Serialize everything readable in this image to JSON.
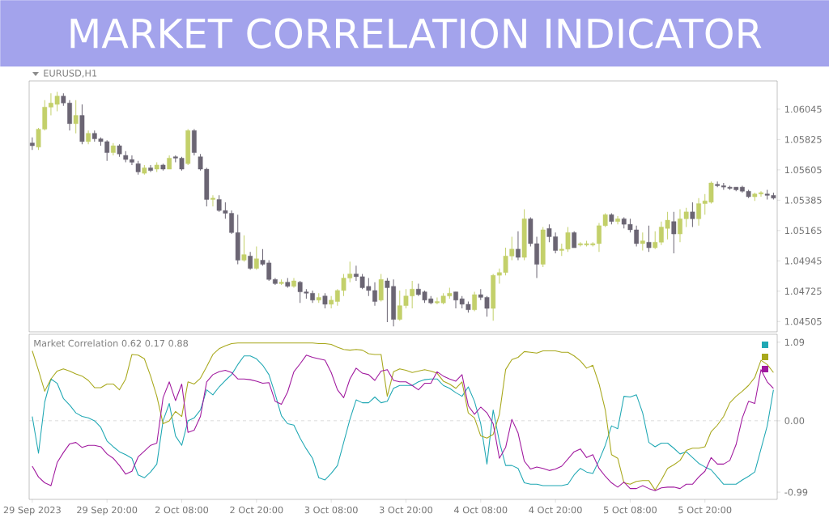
{
  "chart_data": [
    {
      "type": "candlestick",
      "title": "MARKET CORRELATION INDICATOR",
      "subtitle": "EURUSD,H1",
      "categories": [
        null,
        null,
        null,
        null,
        null,
        null,
        null,
        null,
        null,
        null,
        null,
        null,
        null,
        null,
        null,
        null,
        null,
        null,
        null,
        null,
        null,
        null,
        null,
        null,
        null,
        null,
        null,
        null,
        null,
        null,
        null,
        null,
        null,
        null,
        null,
        null,
        null,
        null,
        null,
        null,
        null,
        null,
        null,
        null,
        null,
        null,
        null,
        null,
        null,
        null,
        null,
        null,
        null,
        null,
        null,
        null,
        null,
        null,
        null,
        null,
        null,
        null,
        null,
        null,
        null,
        null,
        null,
        null,
        null,
        null,
        null,
        null,
        null,
        null,
        null,
        null,
        null,
        null,
        null,
        null,
        null,
        null,
        null,
        null,
        null,
        null,
        null,
        null,
        null,
        null,
        null,
        null,
        null,
        null,
        null,
        null,
        null,
        null,
        null,
        null,
        null,
        null,
        null,
        null,
        null,
        null,
        null,
        null,
        null,
        null,
        null,
        null,
        null,
        null,
        null,
        null,
        null,
        null,
        null,
        null
      ],
      "ohlc": [
        [
          1.058,
          1.0584,
          1.0575,
          1.0578
        ],
        [
          1.0577,
          1.0591,
          1.0575,
          1.059
        ],
        [
          1.059,
          1.0611,
          1.0589,
          1.0606
        ],
        [
          1.0606,
          1.0616,
          1.06,
          1.0609
        ],
        [
          1.0608,
          1.0617,
          1.0603,
          1.0614
        ],
        [
          1.0614,
          1.0616,
          1.0607,
          1.0609
        ],
        [
          1.0609,
          1.0611,
          1.0589,
          1.0594
        ],
        [
          1.0594,
          1.0611,
          1.0587,
          1.06
        ],
        [
          1.06,
          1.0608,
          1.0579,
          1.0581
        ],
        [
          1.0581,
          1.0589,
          1.0579,
          1.0587
        ],
        [
          1.0587,
          1.0589,
          1.0581,
          1.0583
        ],
        [
          1.0583,
          1.0584,
          1.0578,
          1.0581
        ],
        [
          1.0581,
          1.0582,
          1.0567,
          1.0573
        ],
        [
          1.0573,
          1.058,
          1.0571,
          1.0578
        ],
        [
          1.0578,
          1.0579,
          1.057,
          1.0572
        ],
        [
          1.0571,
          1.0574,
          1.0566,
          1.0568
        ],
        [
          1.0568,
          1.0571,
          1.0564,
          1.0566
        ],
        [
          1.0565,
          1.0567,
          1.0557,
          1.0559
        ],
        [
          1.0558,
          1.0564,
          1.0557,
          1.0562
        ],
        [
          1.0562,
          1.0564,
          1.0559,
          1.056
        ],
        [
          1.0561,
          1.0566,
          1.0559,
          1.0564
        ],
        [
          1.0564,
          1.0565,
          1.056,
          1.0561
        ],
        [
          1.0561,
          1.0571,
          1.0561,
          1.0569
        ],
        [
          1.057,
          1.0571,
          1.0566,
          1.0569
        ],
        [
          1.0569,
          1.057,
          1.056,
          1.0561
        ],
        [
          1.0565,
          1.059,
          1.0564,
          1.0589
        ],
        [
          1.0589,
          1.059,
          1.0571,
          1.0573
        ],
        [
          1.057,
          1.0572,
          1.056,
          1.0561
        ],
        [
          1.0561,
          1.0562,
          1.0534,
          1.0539
        ],
        [
          1.0539,
          1.0542,
          1.0534,
          1.054
        ],
        [
          1.0539,
          1.0542,
          1.053,
          1.0531
        ],
        [
          1.0531,
          1.0537,
          1.0525,
          1.0529
        ],
        [
          1.0529,
          1.0531,
          1.0514,
          1.0515
        ],
        [
          1.0515,
          1.0528,
          1.0492,
          1.0495
        ],
        [
          1.0495,
          1.0513,
          1.0494,
          1.0499
        ],
        [
          1.0498,
          1.0501,
          1.0488,
          1.0489
        ],
        [
          1.0489,
          1.0505,
          1.0488,
          1.0496
        ],
        [
          1.0495,
          1.0503,
          1.0491,
          1.0492
        ],
        [
          1.0493,
          1.0495,
          1.048,
          1.0481
        ],
        [
          1.0481,
          1.0482,
          1.0477,
          1.0478
        ],
        [
          1.0478,
          1.0481,
          1.0477,
          1.0479
        ],
        [
          1.0479,
          1.0482,
          1.0475,
          1.0476
        ],
        [
          1.0476,
          1.0482,
          1.0475,
          1.048
        ],
        [
          1.0479,
          1.048,
          1.0464,
          1.0472
        ],
        [
          1.0472,
          1.0474,
          1.0467,
          1.0471
        ],
        [
          1.0471,
          1.0473,
          1.0464,
          1.0466
        ],
        [
          1.0466,
          1.0471,
          1.0464,
          1.0468
        ],
        [
          1.0469,
          1.0471,
          1.046,
          1.0463
        ],
        [
          1.0463,
          1.0469,
          1.046,
          1.0466
        ],
        [
          1.0465,
          1.0474,
          1.0462,
          1.0473
        ],
        [
          1.0473,
          1.0485,
          1.0469,
          1.0482
        ],
        [
          1.0482,
          1.0494,
          1.0479,
          1.0485
        ],
        [
          1.0485,
          1.0491,
          1.048,
          1.0483
        ],
        [
          1.0483,
          1.0485,
          1.0474,
          1.0475
        ],
        [
          1.0476,
          1.0482,
          1.0469,
          1.0473
        ],
        [
          1.0473,
          1.0479,
          1.0462,
          1.0465
        ],
        [
          1.0466,
          1.0485,
          1.0465,
          1.0481
        ],
        [
          1.048,
          1.0482,
          1.045,
          1.0475
        ],
        [
          1.0476,
          1.0481,
          1.0447,
          1.0452
        ],
        [
          1.0452,
          1.0473,
          1.0451,
          1.0462
        ],
        [
          1.0462,
          1.0474,
          1.046,
          1.0469
        ],
        [
          1.0469,
          1.048,
          1.046,
          1.0474
        ],
        [
          1.0474,
          1.0478,
          1.0469,
          1.047
        ],
        [
          1.0472,
          1.0473,
          1.0464,
          1.0466
        ],
        [
          1.0467,
          1.0469,
          1.0463,
          1.0464
        ],
        [
          1.0464,
          1.0468,
          1.0463,
          1.0465
        ],
        [
          1.0464,
          1.0471,
          1.0463,
          1.0469
        ],
        [
          1.0469,
          1.0475,
          1.0467,
          1.0471
        ],
        [
          1.0472,
          1.0472,
          1.046,
          1.0466
        ],
        [
          1.0467,
          1.0469,
          1.046,
          1.0463
        ],
        [
          1.0463,
          1.0465,
          1.0457,
          1.0459
        ],
        [
          1.0459,
          1.0472,
          1.0458,
          1.047
        ],
        [
          1.047,
          1.0474,
          1.0466,
          1.0468
        ],
        [
          1.0468,
          1.0469,
          1.0454,
          1.046
        ],
        [
          1.046,
          1.0485,
          1.0451,
          1.0484
        ],
        [
          1.0484,
          1.0489,
          1.0478,
          1.0486
        ],
        [
          1.0486,
          1.0504,
          1.0484,
          1.0498
        ],
        [
          1.0498,
          1.0512,
          1.0495,
          1.0503
        ],
        [
          1.0503,
          1.0516,
          1.0495,
          1.0497
        ],
        [
          1.0497,
          1.0532,
          1.0495,
          1.0525
        ],
        [
          1.0525,
          1.0526,
          1.0505,
          1.0507
        ],
        [
          1.0507,
          1.0512,
          1.0482,
          1.0492
        ],
        [
          1.0492,
          1.0519,
          1.049,
          1.0517
        ],
        [
          1.0518,
          1.0521,
          1.0508,
          1.0512
        ],
        [
          1.0512,
          1.0515,
          1.05,
          1.0502
        ],
        [
          1.0502,
          1.0507,
          1.0498,
          1.0503
        ],
        [
          1.0503,
          1.0519,
          1.0501,
          1.0515
        ],
        [
          1.0515,
          1.0516,
          1.0504,
          1.0504
        ],
        [
          1.0506,
          1.0508,
          1.0505,
          1.0507
        ],
        [
          1.0506,
          1.0509,
          1.0505,
          1.0507
        ],
        [
          1.0506,
          1.0508,
          1.0505,
          1.0507
        ],
        [
          1.0507,
          1.0522,
          1.0501,
          1.052
        ],
        [
          1.052,
          1.0529,
          1.0519,
          1.0528
        ],
        [
          1.0528,
          1.0529,
          1.0521,
          1.0523
        ],
        [
          1.0523,
          1.0527,
          1.0521,
          1.0525
        ],
        [
          1.0525,
          1.0526,
          1.0518,
          1.0521
        ],
        [
          1.0521,
          1.0525,
          1.0515,
          1.0517
        ],
        [
          1.0517,
          1.052,
          1.0505,
          1.0507
        ],
        [
          1.0507,
          1.0515,
          1.0502,
          1.0509
        ],
        [
          1.0508,
          1.052,
          1.0501,
          1.0504
        ],
        [
          1.0504,
          1.0516,
          1.0503,
          1.0508
        ],
        [
          1.0508,
          1.0523,
          1.0506,
          1.0519
        ],
        [
          1.0518,
          1.053,
          1.051,
          1.0524
        ],
        [
          1.0523,
          1.053,
          1.05,
          1.0514
        ],
        [
          1.0514,
          1.0532,
          1.0508,
          1.0525
        ],
        [
          1.0525,
          1.0533,
          1.0519,
          1.053
        ],
        [
          1.053,
          1.0537,
          1.0519,
          1.0525
        ],
        [
          1.0525,
          1.054,
          1.052,
          1.0536
        ],
        [
          1.0536,
          1.0543,
          1.0528,
          1.0538
        ],
        [
          1.0537,
          1.0552,
          1.0536,
          1.0551
        ],
        [
          1.055,
          1.0552,
          1.0548,
          1.0549
        ],
        [
          1.0549,
          1.0551,
          1.0546,
          1.0548
        ],
        [
          1.0548,
          1.0549,
          1.0546,
          1.0547
        ],
        [
          1.0548,
          1.0548,
          1.0545,
          1.0546
        ],
        [
          1.0548,
          1.0549,
          1.0544,
          1.0545
        ],
        [
          1.0545,
          1.0546,
          1.054,
          1.0541
        ],
        [
          1.0541,
          1.0544,
          1.0538,
          1.0543
        ],
        [
          1.0543,
          1.0545,
          1.0541,
          1.0544
        ],
        [
          1.0543,
          1.0546,
          1.0539,
          1.0542
        ],
        [
          1.0542,
          1.0544,
          1.0539,
          1.054
        ]
      ],
      "colors": [
        "#6b6573",
        "#c3d06a",
        "#c3d06a",
        "#c3d06a",
        "#c3d06a",
        "#6b6573",
        "#6b6573",
        "#c3d06a",
        "#6b6573",
        "#c3d06a",
        "#6b6573",
        "#6b6573",
        "#6b6573",
        "#c3d06a",
        "#6b6573",
        "#6b6573",
        "#6b6573",
        "#6b6573",
        "#c3d06a",
        "#6b6573",
        "#c3d06a",
        "#6b6573",
        "#c3d06a",
        "#6b6573",
        "#6b6573",
        "#c3d06a",
        "#6b6573",
        "#6b6573",
        "#6b6573",
        "#c3d06a",
        "#6b6573",
        "#6b6573",
        "#6b6573",
        "#6b6573",
        "#c3d06a",
        "#6b6573",
        "#c3d06a",
        "#6b6573",
        "#6b6573",
        "#6b6573",
        "#c3d06a",
        "#6b6573",
        "#c3d06a",
        "#6b6573",
        "#6b6573",
        "#6b6573",
        "#c3d06a",
        "#6b6573",
        "#c3d06a",
        "#c3d06a",
        "#c3d06a",
        "#c3d06a",
        "#6b6573",
        "#6b6573",
        "#6b6573",
        "#6b6573",
        "#c3d06a",
        "#6b6573",
        "#6b6573",
        "#c3d06a",
        "#c3d06a",
        "#c3d06a",
        "#6b6573",
        "#6b6573",
        "#6b6573",
        "#c3d06a",
        "#c3d06a",
        "#c3d06a",
        "#6b6573",
        "#6b6573",
        "#6b6573",
        "#c3d06a",
        "#6b6573",
        "#6b6573",
        "#c3d06a",
        "#c3d06a",
        "#c3d06a",
        "#c3d06a",
        "#6b6573",
        "#c3d06a",
        "#6b6573",
        "#6b6573",
        "#c3d06a",
        "#6b6573",
        "#6b6573",
        "#c3d06a",
        "#c3d06a",
        "#6b6573",
        "#c3d06a",
        "#c3d06a",
        "#c3d06a",
        "#c3d06a",
        "#c3d06a",
        "#6b6573",
        "#c3d06a",
        "#6b6573",
        "#6b6573",
        "#6b6573",
        "#c3d06a",
        "#6b6573",
        "#c3d06a",
        "#c3d06a",
        "#c3d06a",
        "#6b6573",
        "#c3d06a",
        "#c3d06a",
        "#6b6573",
        "#c3d06a",
        "#c3d06a",
        "#c3d06a",
        "#6b6573",
        "#6b6573",
        "#6b6573",
        "#6b6573",
        "#6b6573",
        "#6b6573",
        "#c3d06a",
        "#c3d06a",
        "#6b6573",
        "#6b6573"
      ],
      "ylim": [
        1.0443,
        1.0625
      ],
      "yticks": [
        1.04505,
        1.04725,
        1.04945,
        1.05165,
        1.05385,
        1.05605,
        1.05825,
        1.06045
      ],
      "tick_labels": "y"
    },
    {
      "type": "line",
      "title": "Market Correlation 0.62 0.17 0.88",
      "categories": [
        "29 Sep 2023",
        null,
        null,
        null,
        null,
        null,
        null,
        null,
        null,
        null,
        null,
        null,
        "29 Sep 20:00",
        null,
        null,
        null,
        null,
        null,
        null,
        null,
        null,
        null,
        null,
        null,
        "2 Oct 08:00",
        null,
        null,
        null,
        null,
        null,
        null,
        null,
        null,
        null,
        null,
        null,
        "2 Oct 20:00",
        null,
        null,
        null,
        null,
        null,
        null,
        null,
        null,
        null,
        null,
        null,
        "3 Oct 08:00",
        null,
        null,
        null,
        null,
        null,
        null,
        null,
        null,
        null,
        null,
        null,
        "3 Oct 20:00",
        null,
        null,
        null,
        null,
        null,
        null,
        null,
        null,
        null,
        null,
        null,
        "4 Oct 08:00",
        null,
        null,
        null,
        null,
        null,
        null,
        null,
        null,
        null,
        null,
        null,
        "4 Oct 20:00",
        null,
        null,
        null,
        null,
        null,
        null,
        null,
        null,
        null,
        null,
        null,
        "5 Oct 08:00",
        null,
        null,
        null,
        null,
        null,
        null,
        null,
        null,
        null,
        null,
        null,
        "5 Oct 20:00",
        null,
        null,
        null,
        null,
        null,
        null,
        null,
        null,
        null,
        null,
        null
      ],
      "series": [
        {
          "color": "#20a8b4",
          "values": [
            0.06,
            -0.45,
            0.26,
            0.58,
            0.52,
            0.31,
            0.22,
            0.11,
            0.06,
            0.04,
            0.0,
            -0.09,
            -0.28,
            -0.36,
            -0.43,
            -0.47,
            -0.52,
            -0.75,
            -0.79,
            -0.71,
            -0.6,
            0.0,
            0.24,
            -0.21,
            -0.34,
            0.0,
            0.04,
            0.15,
            0.43,
            0.36,
            0.47,
            0.56,
            0.64,
            0.78,
            0.9,
            0.9,
            0.86,
            0.77,
            0.64,
            0.37,
            0.07,
            -0.04,
            -0.06,
            -0.24,
            -0.39,
            -0.52,
            -0.79,
            -0.82,
            -0.73,
            -0.62,
            -0.3,
            0.02,
            0.29,
            0.25,
            0.25,
            0.33,
            0.25,
            0.27,
            0.45,
            0.49,
            0.49,
            0.49,
            0.54,
            0.57,
            0.58,
            0.58,
            0.49,
            0.45,
            0.39,
            0.34,
            0.47,
            0.27,
            -0.04,
            -0.6,
            0.15,
            -0.29,
            -0.62,
            -0.62,
            -0.66,
            -0.86,
            -0.88,
            -0.88,
            -0.9,
            -0.9,
            -0.9,
            -0.9,
            -0.88,
            -0.75,
            -0.66,
            -0.71,
            -0.73,
            -0.55,
            -0.34,
            -0.07,
            -0.11,
            0.34,
            0.33,
            0.36,
            0.11,
            -0.3,
            -0.36,
            -0.31,
            -0.31,
            -0.38,
            -0.46,
            -0.43,
            -0.51,
            -0.59,
            -0.64,
            -0.68,
            -0.78,
            -0.88,
            -0.88,
            -0.88,
            -0.82,
            -0.77,
            -0.71,
            -0.39,
            -0.07,
            0.43
          ]
        },
        {
          "color": "#a8a81c",
          "values": [
            0.97,
            0.7,
            0.41,
            0.58,
            0.69,
            0.72,
            0.69,
            0.65,
            0.62,
            0.56,
            0.46,
            0.46,
            0.51,
            0.51,
            0.43,
            0.58,
            0.92,
            0.91,
            0.86,
            0.62,
            0.34,
            -0.04,
            0.0,
            0.13,
            0.06,
            0.54,
            0.51,
            0.59,
            0.75,
            0.92,
            1.0,
            1.04,
            1.07,
            1.08,
            1.08,
            1.08,
            1.08,
            1.08,
            1.08,
            1.08,
            1.08,
            1.08,
            1.08,
            1.08,
            1.08,
            1.08,
            1.07,
            1.07,
            1.06,
            1.02,
            0.99,
            0.98,
            0.99,
            0.98,
            0.93,
            0.92,
            0.92,
            0.34,
            0.68,
            0.72,
            0.7,
            0.67,
            0.69,
            0.71,
            0.69,
            0.66,
            0.55,
            0.51,
            0.45,
            0.54,
            0.11,
            0.04,
            -0.21,
            -0.24,
            -0.19,
            0.09,
            0.71,
            0.85,
            0.88,
            0.96,
            0.95,
            0.94,
            0.97,
            0.97,
            0.97,
            0.95,
            0.95,
            0.9,
            0.83,
            0.73,
            0.77,
            0.51,
            0.15,
            -0.47,
            -0.52,
            -0.86,
            -0.88,
            -0.84,
            -0.83,
            -0.83,
            -0.96,
            -0.82,
            -0.66,
            -0.61,
            -0.55,
            -0.41,
            -0.38,
            -0.38,
            -0.36,
            -0.15,
            -0.06,
            0.06,
            0.25,
            0.34,
            0.41,
            0.49,
            0.6,
            0.84,
            0.78,
            0.67
          ]
        },
        {
          "color": "#a0189e",
          "values": [
            -0.63,
            -0.78,
            -0.86,
            -0.9,
            -0.58,
            -0.44,
            -0.32,
            -0.3,
            -0.37,
            -0.34,
            -0.34,
            -0.36,
            -0.46,
            -0.52,
            -0.62,
            -0.74,
            -0.7,
            -0.5,
            -0.42,
            -0.34,
            -0.31,
            0.32,
            0.54,
            0.28,
            0.51,
            -0.16,
            -0.13,
            0.06,
            0.54,
            0.64,
            0.68,
            0.7,
            0.67,
            0.58,
            0.58,
            0.57,
            0.55,
            0.52,
            0.53,
            0.27,
            0.23,
            0.4,
            0.68,
            0.79,
            0.91,
            0.88,
            0.86,
            0.84,
            0.67,
            0.43,
            0.32,
            0.58,
            0.73,
            0.66,
            0.64,
            0.56,
            0.69,
            0.71,
            0.56,
            0.54,
            0.54,
            0.49,
            0.43,
            0.52,
            0.52,
            0.68,
            0.62,
            0.58,
            0.55,
            0.64,
            0.21,
            0.09,
            0.19,
            0.11,
            -0.04,
            -0.52,
            -0.37,
            0.02,
            -0.17,
            -0.56,
            -0.67,
            -0.64,
            -0.66,
            -0.69,
            -0.67,
            -0.63,
            -0.53,
            -0.43,
            -0.39,
            -0.51,
            -0.47,
            -0.66,
            -0.77,
            -0.86,
            -0.92,
            -0.85,
            -0.94,
            -0.94,
            -0.9,
            -0.94,
            -0.97,
            -0.93,
            -0.92,
            -0.92,
            -0.94,
            -0.88,
            -0.88,
            -0.78,
            -0.7,
            -0.51,
            -0.6,
            -0.6,
            -0.55,
            -0.33,
            0.04,
            0.27,
            0.24,
            0.71,
            0.54,
            0.45
          ]
        }
      ],
      "ylim": [
        -1.09,
        1.2
      ],
      "yticks": [
        -0.99,
        {
          "value": 0,
          "label": "0.00"
        },
        1.09
      ],
      "ref_lines": [
        {
          "axis": "y",
          "value": 0,
          "color": "#bdbdbd",
          "line_style": "dashed"
        }
      ]
    }
  ]
}
